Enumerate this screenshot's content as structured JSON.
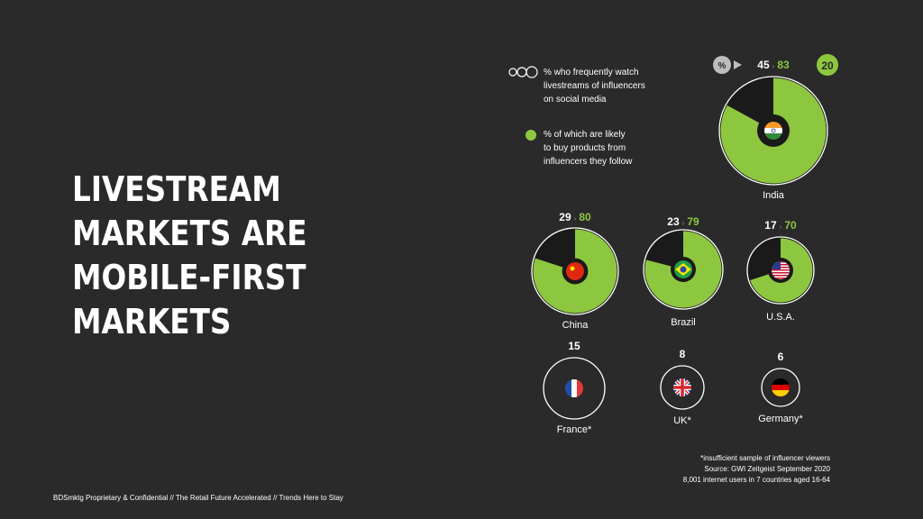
{
  "headline": [
    "LIVESTREAM",
    "MARKETS ARE",
    "MOBILE-FIRST",
    "MARKETS"
  ],
  "legend": {
    "watch_lines": [
      "% who frequently watch",
      "livestreams of influencers",
      "on social media"
    ],
    "buy_lines": [
      "% of which are likely",
      "to buy products from",
      "influencers they follow"
    ],
    "pct_symbol": "%",
    "highlight_value": "20"
  },
  "chart_data": {
    "type": "pie",
    "title": "",
    "series_labels": [
      "% who frequently watch livestreams of influencers on social media",
      "% of which are likely to buy products from influencers they follow"
    ],
    "countries": [
      {
        "name": "India",
        "watch": 45,
        "buy": 83,
        "flag": "india-flag-icon"
      },
      {
        "name": "China",
        "watch": 29,
        "buy": 80,
        "flag": "china-flag-icon"
      },
      {
        "name": "Brazil",
        "watch": 23,
        "buy": 79,
        "flag": "brazil-flag-icon"
      },
      {
        "name": "U.S.A.",
        "watch": 17,
        "buy": 70,
        "flag": "usa-flag-icon"
      },
      {
        "name": "France*",
        "watch": 15,
        "buy": null,
        "flag": "france-flag-icon"
      },
      {
        "name": "UK*",
        "watch": 8,
        "buy": null,
        "flag": "uk-flag-icon"
      },
      {
        "name": "Germany*",
        "watch": 6,
        "buy": null,
        "flag": "germany-flag-icon"
      }
    ]
  },
  "footnotes": [
    "*insufficient sample of influencer viewers",
    "Source: GWI Zeitgeist September 2020",
    "8,001 internet users in 7 countries aged 16-64"
  ],
  "footer": "BDSmktg Proprietary & Confidential // The Retail Future Accelerated // Trends Here to Stay",
  "colors": {
    "green": "#8dc73f",
    "background": "#2a2a2a",
    "donut_hole": "#1a1a1a"
  }
}
